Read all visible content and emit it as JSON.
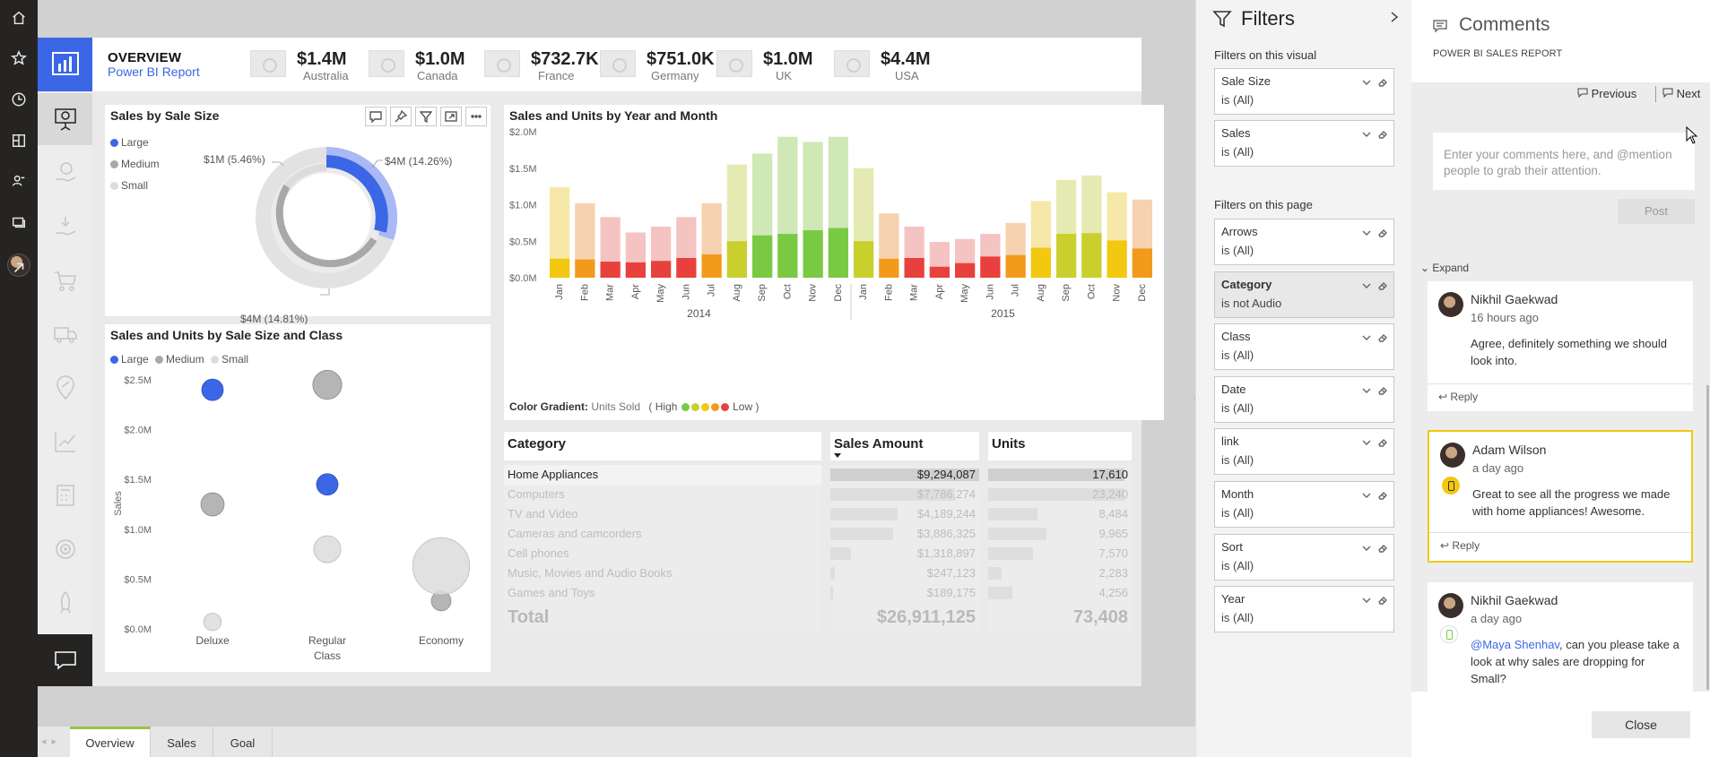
{
  "rail": {
    "items": [
      "home",
      "favorites",
      "recent",
      "apps",
      "shared",
      "workspaces",
      "profile"
    ]
  },
  "report": {
    "title": "OVERVIEW",
    "subtitle": "Power BI Report",
    "kpis": [
      {
        "value": "$1.4M",
        "country": "Australia"
      },
      {
        "value": "$1.0M",
        "country": "Canada"
      },
      {
        "value": "$732.7K",
        "country": "France"
      },
      {
        "value": "$751.0K",
        "country": "Germany"
      },
      {
        "value": "$1.0M",
        "country": "UK"
      },
      {
        "value": "$4.4M",
        "country": "USA"
      }
    ]
  },
  "donut": {
    "title": "Sales by Sale Size",
    "legend": [
      "Large",
      "Medium",
      "Small"
    ],
    "labels": [
      "$4M (14.26%)",
      "$4M (14.81%)",
      "$1M (5.46%)"
    ]
  },
  "bubble": {
    "title": "Sales and Units by Sale Size and Class",
    "legend": [
      "Large",
      "Medium",
      "Small"
    ],
    "y_label": "Sales",
    "y_ticks": [
      "$2.5M",
      "$2.0M",
      "$1.5M",
      "$1.0M",
      "$0.5M",
      "$0.0M"
    ],
    "x_ticks": [
      "Deluxe",
      "Regular Class",
      "Economy"
    ],
    "x_ticks_line1": [
      "Deluxe",
      "Regular",
      "Economy"
    ],
    "x_ticks_line2": [
      "",
      "Class",
      ""
    ]
  },
  "colors": {
    "accent": "#3b66e6",
    "large": "#3b66e6",
    "medium": "#a8a8a8",
    "small": "#dcdcdc",
    "gradient": [
      "#7ac943",
      "#c9cf2d",
      "#f2c811",
      "#f29b1a",
      "#e8413d"
    ]
  },
  "chart_data": [
    {
      "type": "pie",
      "title": "Sales by Sale Size",
      "categories": [
        "Large",
        "Medium",
        "Small"
      ],
      "values": [
        4.0,
        4.0,
        1.0
      ],
      "percent_labels": [
        "14.26%",
        "14.81%",
        "5.46%"
      ],
      "legend": "top-left"
    },
    {
      "type": "scatter",
      "title": "Sales and Units by Sale Size and Class",
      "ylabel": "Sales",
      "categories": [
        "Deluxe",
        "Regular Class",
        "Economy"
      ],
      "ylim": [
        0,
        2.5
      ],
      "series": [
        {
          "name": "Large",
          "points": [
            {
              "x": "Deluxe",
              "y": 2.4,
              "size": 1
            },
            {
              "x": "Regular Class",
              "y": 1.45,
              "size": 1
            }
          ]
        },
        {
          "name": "Medium",
          "points": [
            {
              "x": "Deluxe",
              "y": 1.25,
              "size": 1.2
            },
            {
              "x": "Regular Class",
              "y": 2.45,
              "size": 2
            },
            {
              "x": "Economy",
              "y": 0.28,
              "size": 0.8
            }
          ]
        },
        {
          "name": "Small",
          "points": [
            {
              "x": "Deluxe",
              "y": 0.07,
              "size": 0.6
            },
            {
              "x": "Regular Class",
              "y": 0.8,
              "size": 1.7
            },
            {
              "x": "Economy",
              "y": 0.63,
              "size": 3.9
            }
          ]
        }
      ],
      "legend": "top-left"
    },
    {
      "type": "bar",
      "title": "Sales and Units by Year and Month",
      "categories": [
        "Jan",
        "Feb",
        "Mar",
        "Apr",
        "May",
        "Jun",
        "Jul",
        "Aug",
        "Sep",
        "Oct",
        "Nov",
        "Dec",
        "Jan",
        "Feb",
        "Mar",
        "Apr",
        "May",
        "Jun",
        "Jul",
        "Aug",
        "Sep",
        "Oct",
        "Nov",
        "Dec"
      ],
      "years": [
        "2014",
        "2015"
      ],
      "y_ticks": [
        "$2.0M",
        "$1.5M",
        "$1.0M",
        "$0.5M",
        "$0.0M"
      ],
      "ylim": [
        0,
        2.0
      ],
      "values": [
        1.24,
        1.02,
        0.83,
        0.62,
        0.7,
        0.83,
        1.02,
        1.55,
        1.7,
        1.93,
        1.86,
        1.93,
        1.5,
        0.88,
        0.7,
        0.49,
        0.53,
        0.6,
        0.75,
        1.05,
        1.34,
        1.4,
        1.17,
        1.07
      ],
      "units_values": [
        0.26,
        0.25,
        0.22,
        0.21,
        0.23,
        0.27,
        0.32,
        0.5,
        0.58,
        0.6,
        0.65,
        0.68,
        0.5,
        0.26,
        0.27,
        0.15,
        0.2,
        0.29,
        0.31,
        0.41,
        0.6,
        0.61,
        0.51,
        0.4
      ],
      "color_level": [
        2,
        1,
        0,
        0,
        0,
        0,
        1,
        3,
        4,
        4,
        4,
        4,
        3,
        1,
        0,
        0,
        0,
        0,
        1,
        2,
        3,
        3,
        2,
        1
      ],
      "legend_text": "Color Gradient:",
      "legend_series": "Units Sold",
      "legend_high": "( High",
      "legend_low": "Low )"
    }
  ],
  "table": {
    "headers": [
      "Category",
      "Sales Amount",
      "Units"
    ],
    "rows": [
      {
        "category": "Home Appliances",
        "sales": "$9,294,087",
        "units": "17,610",
        "sales_frac": 1.0,
        "units_frac": 1.0
      },
      {
        "category": "Computers",
        "sales": "$7,786,274",
        "units": "23,240",
        "sales_frac": 0.84,
        "units_frac": 1.0
      },
      {
        "category": "TV and Video",
        "sales": "$4,189,244",
        "units": "8,484",
        "sales_frac": 0.45,
        "units_frac": 0.36
      },
      {
        "category": "Cameras and camcorders",
        "sales": "$3,886,325",
        "units": "9,965",
        "sales_frac": 0.42,
        "units_frac": 0.43
      },
      {
        "category": "Cell phones",
        "sales": "$1,318,897",
        "units": "7,570",
        "sales_frac": 0.14,
        "units_frac": 0.33
      },
      {
        "category": "Music, Movies and Audio Books",
        "sales": "$247,123",
        "units": "2,283",
        "sales_frac": 0.03,
        "units_frac": 0.1
      },
      {
        "category": "Games and Toys",
        "sales": "$189,175",
        "units": "4,256",
        "sales_frac": 0.02,
        "units_frac": 0.18
      }
    ],
    "total_label": "Total",
    "total_sales": "$26,911,125",
    "total_units": "73,408"
  },
  "tabs": [
    "Overview",
    "Sales",
    "Goal"
  ],
  "filters": {
    "title": "Filters",
    "visual_label": "Filters on this visual",
    "page_label": "Filters on this page",
    "visual": [
      {
        "name": "Sale Size",
        "value": "is (All)"
      },
      {
        "name": "Sales",
        "value": "is (All)"
      }
    ],
    "page": [
      {
        "name": "Arrows",
        "value": "is (All)"
      },
      {
        "name": "Category",
        "value": "is not Audio"
      },
      {
        "name": "Class",
        "value": "is (All)"
      },
      {
        "name": "Date",
        "value": "is (All)"
      },
      {
        "name": "link",
        "value": "is (All)"
      },
      {
        "name": "Month",
        "value": "is (All)"
      },
      {
        "name": "Sort",
        "value": "is (All)"
      },
      {
        "name": "Year",
        "value": "is (All)"
      }
    ]
  },
  "comments": {
    "title": "Comments",
    "subtitle": "POWER BI SALES REPORT",
    "previous": "Previous",
    "next": "Next",
    "placeholder": "Enter your comments here, and @mention people to grab their attention.",
    "post": "Post",
    "expand": "Expand",
    "reply": "Reply",
    "threads": [
      {
        "name": "Nikhil Gaekwad",
        "time": "16 hours ago",
        "text": "Agree, definitely something we should look into."
      },
      {
        "name": "Adam Wilson",
        "time": "a day ago",
        "text": "Great to see all the progress we made with home appliances! Awesome."
      },
      {
        "name": "Nikhil Gaekwad",
        "time": "a day ago",
        "mention": "@Maya Shenhav",
        "text": ", can you please take a look at why sales are dropping for Small?"
      }
    ],
    "close": "Close"
  }
}
